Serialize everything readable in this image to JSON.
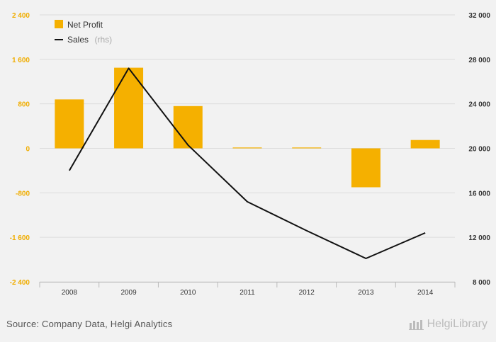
{
  "chart_data": {
    "type": "bar+line",
    "categories": [
      "2008",
      "2009",
      "2010",
      "2011",
      "2012",
      "2013",
      "2014"
    ],
    "series": [
      {
        "name": "Net Profit",
        "type": "bar",
        "axis": "left",
        "color": "#f5b000",
        "values": [
          880,
          1450,
          760,
          10,
          5,
          -700,
          150
        ]
      },
      {
        "name": "Sales",
        "name_suffix": "(rhs)",
        "type": "line",
        "axis": "right",
        "color": "#111111",
        "values": [
          18000,
          27200,
          20300,
          15200,
          12600,
          10100,
          12400
        ]
      }
    ],
    "y_left": {
      "min": -2400,
      "max": 2400,
      "ticks": [
        -2400,
        -1600,
        -800,
        0,
        800,
        1600,
        2400
      ],
      "tick_labels": [
        "-2 400",
        "-1 600",
        "-800",
        "0",
        "800",
        "1 600",
        "2 400"
      ]
    },
    "y_right": {
      "min": 8000,
      "max": 32000,
      "ticks": [
        8000,
        12000,
        16000,
        20000,
        24000,
        28000,
        32000
      ],
      "tick_labels": [
        "8 000",
        "12 000",
        "16 000",
        "20 000",
        "24 000",
        "28 000",
        "32 000"
      ]
    },
    "legend": {
      "position": "top-left"
    },
    "grid": true
  },
  "footer": {
    "source": "Source: Company Data, Helgi Analytics",
    "brand": "HelgiLibrary"
  }
}
